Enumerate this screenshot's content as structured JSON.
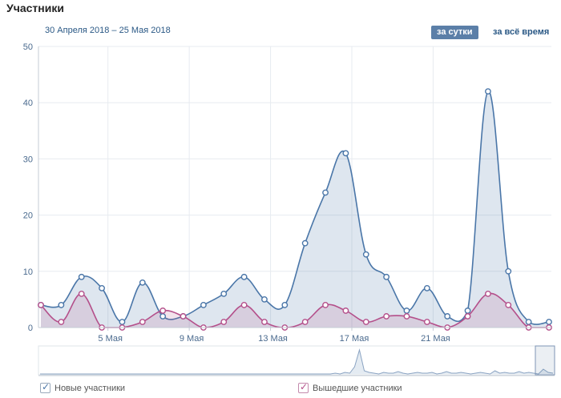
{
  "header": {
    "title": "Участники",
    "date_range": "30 Апреля 2018 – 25 Мая 2018",
    "btn_day": "за сутки",
    "btn_all": "за всё время"
  },
  "legend": {
    "new_label": "Новые участники",
    "left_label": "Вышедшие участники"
  },
  "colors": {
    "new": "#4a76a8",
    "left": "#b44f8a",
    "grid": "#e7ebf0",
    "axis_text": "#4a6a8e"
  },
  "chart_data": {
    "type": "area",
    "x": [
      "30 Апреля",
      "1 Мая",
      "2 Мая",
      "3 Мая",
      "4 Мая",
      "5 Мая",
      "6 Мая",
      "7 Мая",
      "8 Мая",
      "9 Мая",
      "10 Мая",
      "11 Мая",
      "12 Мая",
      "13 Мая",
      "14 Мая",
      "15 Мая",
      "16 Мая",
      "17 Мая",
      "18 Мая",
      "19 Мая",
      "20 Мая",
      "21 Мая",
      "22 Мая",
      "23 Мая",
      "24 Мая",
      "25 Мая"
    ],
    "x_tick_labels": [
      "5 Мая",
      "9 Мая",
      "13 Мая",
      "17 Мая",
      "21 Мая"
    ],
    "x_tick_indices": [
      3.3,
      7.3,
      11.3,
      15.3,
      19.3
    ],
    "y_ticks": [
      0,
      10,
      20,
      30,
      40,
      50
    ],
    "ylim": [
      0,
      50
    ],
    "grid": true,
    "series": [
      {
        "name": "Новые участники",
        "values": [
          4,
          4,
          9,
          7,
          1,
          8,
          2,
          2,
          4,
          6,
          9,
          5,
          4,
          15,
          24,
          31,
          13,
          9,
          3,
          7,
          2,
          3,
          42,
          10,
          1,
          1
        ]
      },
      {
        "name": "Вышедшие участники",
        "values": [
          4,
          1,
          6,
          0,
          0,
          1,
          3,
          2,
          0,
          1,
          4,
          1,
          0,
          1,
          4,
          3,
          1,
          2,
          2,
          1,
          0,
          2,
          6,
          4,
          0,
          0
        ]
      }
    ]
  }
}
